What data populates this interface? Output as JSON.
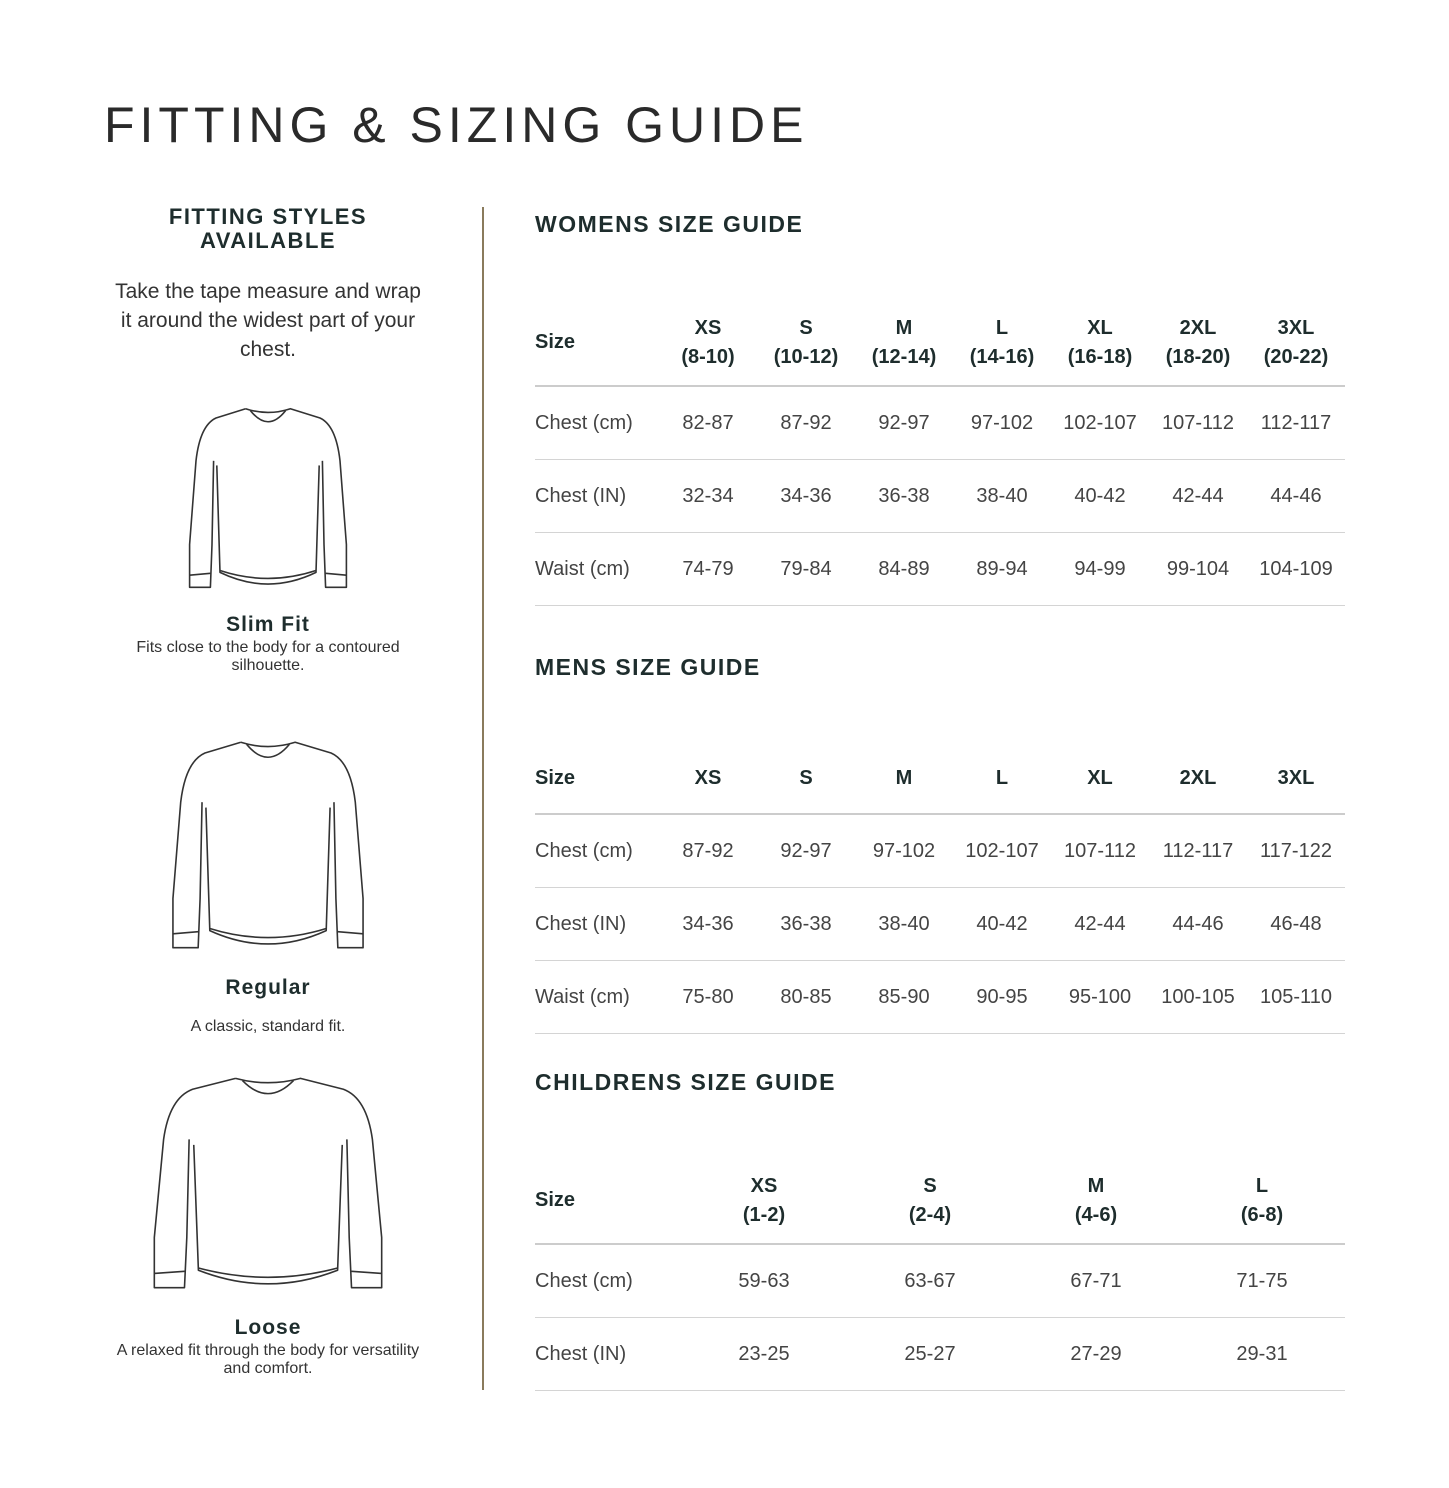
{
  "title": "FITTING & SIZING GUIDE",
  "colors": {
    "heading": "#1e2d2d",
    "divider": "#8a7b5c",
    "rule": "#cccccc"
  },
  "fitting": {
    "heading": "FITTING STYLES AVAILABLE",
    "intro": "Take the tape measure and wrap it around the widest part of your chest.",
    "styles": [
      {
        "name": "Slim Fit",
        "description": "Fits close to the body for a contoured silhouette.",
        "icon": "slim-sweater-icon"
      },
      {
        "name": "Regular",
        "description": "A classic, standard fit.",
        "icon": "regular-sweater-icon"
      },
      {
        "name": "Loose",
        "description": "A relaxed fit through the body for versatility and comfort.",
        "icon": "loose-sweater-icon"
      }
    ]
  },
  "womens": {
    "heading": "WOMENS SIZE GUIDE",
    "header": [
      "Size",
      "XS\n(8-10)",
      "S\n(10-12)",
      "M\n(12-14)",
      "L\n(14-16)",
      "XL\n(16-18)",
      "2XL\n(18-20)",
      "3XL\n(20-22)"
    ],
    "rows": [
      [
        "Chest (cm)",
        "82-87",
        "87-92",
        "92-97",
        "97-102",
        "102-107",
        "107-112",
        "112-117"
      ],
      [
        "Chest (IN)",
        "32-34",
        "34-36",
        "36-38",
        "38-40",
        "40-42",
        "42-44",
        "44-46"
      ],
      [
        "Waist (cm)",
        "74-79",
        "79-84",
        "84-89",
        "89-94",
        "94-99",
        "99-104",
        "104-109"
      ]
    ]
  },
  "mens": {
    "heading": "MENS SIZE GUIDE",
    "header": [
      "Size",
      "XS",
      "S",
      "M",
      "L",
      "XL",
      "2XL",
      "3XL"
    ],
    "rows": [
      [
        "Chest (cm)",
        "87-92",
        "92-97",
        "97-102",
        "102-107",
        "107-112",
        "112-117",
        "117-122"
      ],
      [
        "Chest (IN)",
        "34-36",
        "36-38",
        "38-40",
        "40-42",
        "42-44",
        "44-46",
        "46-48"
      ],
      [
        "Waist (cm)",
        "75-80",
        "80-85",
        "85-90",
        "90-95",
        "95-100",
        "100-105",
        "105-110"
      ]
    ]
  },
  "childrens": {
    "heading": "CHILDRENS SIZE GUIDE",
    "header": [
      "Size",
      "XS\n(1-2)",
      "S\n(2-4)",
      "M\n(4-6)",
      "L\n(6-8)"
    ],
    "rows": [
      [
        "Chest (cm)",
        "59-63",
        "63-67",
        "67-71",
        "71-75"
      ],
      [
        "Chest (IN)",
        "23-25",
        "25-27",
        "27-29",
        "29-31"
      ]
    ]
  }
}
